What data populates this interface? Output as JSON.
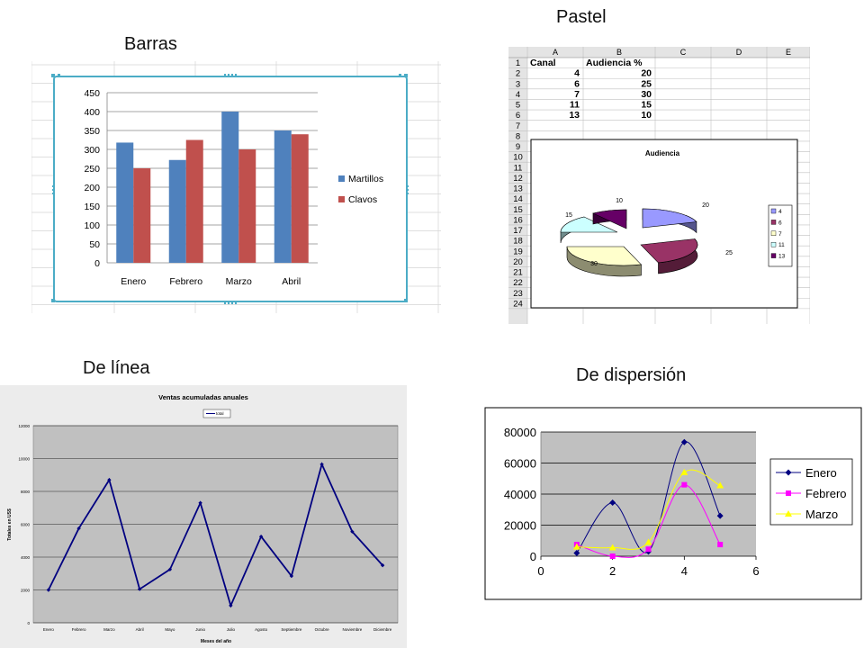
{
  "captions": {
    "bar": "Barras",
    "pie": "Pastel",
    "line": "De línea",
    "scatter": "De dispersión"
  },
  "colors": {
    "martillos": "#4f81bd",
    "clavos": "#c0504d",
    "line": "#000080",
    "enero": "#000080",
    "febrero": "#ff00ff",
    "marzo": "#ffff00",
    "plot_gray": "#c0c0c0"
  },
  "sheet": {
    "columns": [
      "A",
      "B",
      "C",
      "D",
      "E"
    ],
    "rows": [
      "1",
      "2",
      "3",
      "4",
      "5",
      "6",
      "7",
      "8",
      "9",
      "10",
      "11",
      "12",
      "13",
      "14",
      "15",
      "16",
      "17",
      "18",
      "19",
      "20",
      "21",
      "22",
      "23",
      "24"
    ],
    "header": [
      "Canal",
      "Audiencia %"
    ],
    "cells": [
      [
        "4",
        "20"
      ],
      [
        "6",
        "25"
      ],
      [
        "7",
        "30"
      ],
      [
        "11",
        "15"
      ],
      [
        "13",
        "10"
      ]
    ]
  },
  "chart_data": [
    {
      "type": "bar",
      "categories": [
        "Enero",
        "Febrero",
        "Marzo",
        "Abril"
      ],
      "series": [
        {
          "name": "Martillos",
          "values": [
            318,
            272,
            400,
            350
          ]
        },
        {
          "name": "Clavos",
          "values": [
            250,
            325,
            300,
            340
          ]
        }
      ],
      "ylim": [
        0,
        450
      ],
      "yticks": [
        "0",
        "50",
        "100",
        "150",
        "200",
        "250",
        "300",
        "350",
        "400",
        "450"
      ],
      "grid": true,
      "legend": "right"
    },
    {
      "type": "pie",
      "title": "Audiencia",
      "labels": [
        "4",
        "6",
        "7",
        "11",
        "13"
      ],
      "values": [
        20,
        25,
        30,
        15,
        10
      ],
      "data_labels": [
        "20",
        "25",
        "30",
        "15",
        "10"
      ],
      "colors": [
        "#9999ff",
        "#993366",
        "#ffffcc",
        "#ccffff",
        "#660066"
      ],
      "legend": "right"
    },
    {
      "type": "line",
      "title": "Ventas acumuladas anuales",
      "xlabel": "Meses del año",
      "ylabel": "Totales en US$",
      "legend_label": "total",
      "categories": [
        "Enero",
        "Febrero",
        "Marzo",
        "Abril",
        "Mayo",
        "Junio",
        "Julio",
        "Agosto",
        "Septiembre",
        "Octubre",
        "Noviembre",
        "Diciembre"
      ],
      "values": [
        2000,
        5750,
        8700,
        2050,
        3250,
        7300,
        1050,
        5250,
        2850,
        9650,
        5550,
        3500
      ],
      "ylim": [
        0,
        12000
      ],
      "yticks": [
        "0",
        "2000",
        "4000",
        "6000",
        "8000",
        "10000",
        "12000"
      ],
      "grid": true,
      "legend": "top"
    },
    {
      "type": "scatter",
      "xlim": [
        0,
        6
      ],
      "ylim": [
        0,
        80000
      ],
      "xticks": [
        "0",
        "2",
        "4",
        "6"
      ],
      "yticks": [
        "0",
        "20000",
        "40000",
        "60000",
        "80000"
      ],
      "x": [
        1,
        2,
        3,
        4,
        5
      ],
      "series": [
        {
          "name": "Enero",
          "values": [
            2000,
            34500,
            3000,
            73500,
            26000
          ]
        },
        {
          "name": "Febrero",
          "values": [
            7500,
            0,
            4500,
            46000,
            7500
          ]
        },
        {
          "name": "Marzo",
          "values": [
            6000,
            5500,
            9000,
            54000,
            45500
          ]
        }
      ],
      "grid": true,
      "legend": "right"
    }
  ]
}
